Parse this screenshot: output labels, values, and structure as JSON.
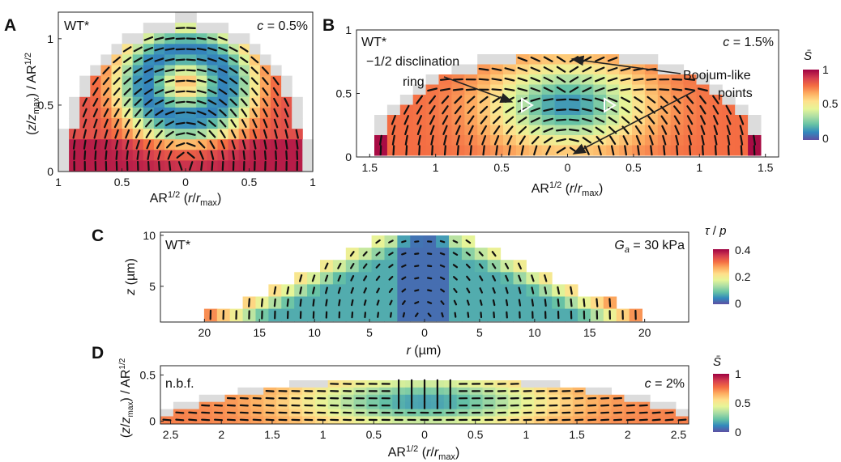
{
  "colors": {
    "colormap": [
      "#5e4fa2",
      "#3288bd",
      "#66c2a5",
      "#abdda4",
      "#e6f598",
      "#fee08b",
      "#fdae61",
      "#f46d43",
      "#d53e4f",
      "#9e0142"
    ],
    "empty_cell": "#dcdcdc",
    "rod": "#111111"
  },
  "chart_data": [
    {
      "panel": "A",
      "type": "heatmap",
      "sample_label": "WT*",
      "condition_label": "c = 0.5%",
      "xlabel": "AR1/2 (r/rmax)",
      "ylabel": "(z/zmax) / AR1/2",
      "xlim": [
        -1,
        1
      ],
      "ylim": [
        0,
        1.2
      ],
      "xticks": [
        -1,
        -0.5,
        0,
        0.5,
        1
      ],
      "xtick_labels": [
        "1",
        "0.5",
        "0",
        "0.5",
        "1"
      ],
      "yticks": [
        0,
        0.5,
        1
      ],
      "ytick_labels": [
        "0",
        "0.5",
        "1"
      ],
      "colorbar": "S̄",
      "field_scalar_range": [
        0,
        1
      ]
    },
    {
      "panel": "B",
      "type": "heatmap",
      "sample_label": "WT*",
      "condition_label": "c = 1.5%",
      "xlabel": "AR1/2 (r/rmax)",
      "xlim": [
        -1.6,
        1.6
      ],
      "ylim": [
        0,
        1
      ],
      "xticks": [
        -1.5,
        -1,
        -0.5,
        0,
        0.5,
        1,
        1.5
      ],
      "xtick_labels": [
        "1.5",
        "1",
        "0.5",
        "0",
        "0.5",
        "1",
        "1.5"
      ],
      "yticks": [
        0,
        0.5,
        1
      ],
      "ytick_labels": [
        "0",
        "0.5",
        "1"
      ],
      "annotations": [
        {
          "text_lines": [
            "−1/2 disclination",
            "ring"
          ],
          "target": "disclination-ring"
        },
        {
          "text_lines": [
            "Boojum-like",
            "points"
          ],
          "target": "boojum-points"
        }
      ],
      "colorbar": {
        "label": "S̄",
        "range": [
          0,
          1
        ],
        "ticks": [
          0,
          0.5,
          1
        ],
        "tick_labels": [
          "0",
          "0.5",
          "1"
        ]
      }
    },
    {
      "panel": "C",
      "type": "heatmap",
      "sample_label": "WT*",
      "condition_label": "Ga = 30 kPa",
      "xlabel": "r (µm)",
      "ylabel": "z (µm)",
      "xlim": [
        -24,
        24
      ],
      "ylim": [
        1.5,
        10.3
      ],
      "xticks": [
        -20,
        -15,
        -10,
        -5,
        0,
        5,
        10,
        15,
        20
      ],
      "xtick_labels": [
        "20",
        "15",
        "10",
        "5",
        "0",
        "5",
        "10",
        "15",
        "20"
      ],
      "yticks": [
        5,
        10
      ],
      "ytick_labels": [
        "5",
        "10"
      ],
      "colorbar": {
        "label": "τ / p",
        "range": [
          0,
          0.4
        ],
        "ticks": [
          0,
          0.2,
          0.4
        ],
        "tick_labels": [
          "0",
          "0.2",
          "0.4"
        ]
      }
    },
    {
      "panel": "D",
      "type": "heatmap",
      "sample_label": "n.b.f.",
      "condition_label": "c = 2%",
      "xlabel": "AR1/2 (r/rmax)",
      "ylabel": "(z/zmax) / AR1/2",
      "xlim": [
        -2.6,
        2.6
      ],
      "ylim": [
        -0.03,
        0.6
      ],
      "xticks": [
        -2.5,
        -2,
        -1.5,
        -1,
        -0.5,
        0,
        0.5,
        1,
        1.5,
        2,
        2.5
      ],
      "xtick_labels": [
        "2.5",
        "2",
        "1.5",
        "1",
        "0.5",
        "0",
        "0.5",
        "1",
        "1.5",
        "2",
        "2.5"
      ],
      "yticks": [
        0,
        0.5
      ],
      "ytick_labels": [
        "0",
        "0.5"
      ],
      "colorbar": {
        "label": "S̄",
        "range": [
          0,
          1
        ],
        "ticks": [
          0,
          0.5,
          1
        ],
        "tick_labels": [
          "0",
          "0.5",
          "1"
        ]
      }
    }
  ]
}
